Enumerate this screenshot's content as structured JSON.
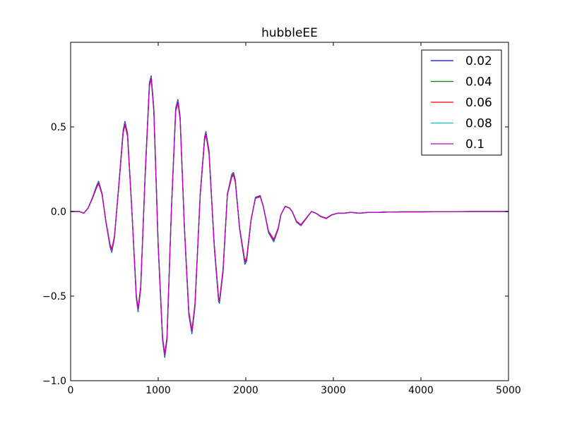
{
  "chart_data": {
    "type": "line",
    "title": "hubbleEE",
    "xlabel": "",
    "ylabel": "",
    "xlim": [
      0,
      5000
    ],
    "ylim": [
      -1.0,
      1.0
    ],
    "x_ticks": [
      0,
      1000,
      2000,
      3000,
      4000,
      5000
    ],
    "x_tick_labels": [
      "0",
      "1000",
      "2000",
      "3000",
      "4000",
      "5000"
    ],
    "y_ticks": [
      -1.0,
      -0.5,
      0.0,
      0.5
    ],
    "y_tick_labels": [
      "−1.0",
      "−0.5",
      "0.0",
      "0.5"
    ],
    "grid": false,
    "legend_position": "top-right",
    "waveform": {
      "x": [
        0,
        100,
        150,
        200,
        250,
        300,
        320,
        360,
        400,
        450,
        470,
        500,
        550,
        600,
        620,
        650,
        700,
        750,
        770,
        800,
        850,
        900,
        920,
        950,
        1000,
        1050,
        1075,
        1100,
        1150,
        1200,
        1225,
        1250,
        1300,
        1350,
        1385,
        1420,
        1480,
        1530,
        1545,
        1580,
        1640,
        1690,
        1700,
        1740,
        1790,
        1840,
        1860,
        1880,
        1930,
        1990,
        2010,
        2060,
        2110,
        2165,
        2200,
        2260,
        2320,
        2370,
        2400,
        2450,
        2500,
        2530,
        2580,
        2630,
        2690,
        2750,
        2800,
        2860,
        2920,
        2980,
        3050,
        3120,
        3200,
        3300,
        3400,
        3500,
        3650,
        3800,
        4000,
        4300,
        4600,
        5000
      ],
      "y": [
        0.0,
        0.0,
        -0.01,
        0.02,
        0.08,
        0.15,
        0.17,
        0.1,
        -0.05,
        -0.2,
        -0.23,
        -0.15,
        0.15,
        0.47,
        0.52,
        0.45,
        0.0,
        -0.5,
        -0.58,
        -0.45,
        0.2,
        0.75,
        0.79,
        0.6,
        -0.2,
        -0.75,
        -0.85,
        -0.75,
        0.0,
        0.6,
        0.65,
        0.55,
        -0.1,
        -0.6,
        -0.71,
        -0.55,
        0.1,
        0.43,
        0.46,
        0.35,
        -0.2,
        -0.52,
        -0.53,
        -0.35,
        0.1,
        0.21,
        0.22,
        0.18,
        -0.1,
        -0.3,
        -0.28,
        -0.05,
        0.08,
        0.09,
        0.03,
        -0.12,
        -0.17,
        -0.1,
        -0.02,
        0.03,
        0.02,
        0.0,
        -0.06,
        -0.08,
        -0.04,
        0.0,
        -0.01,
        -0.03,
        -0.04,
        -0.02,
        -0.01,
        -0.01,
        -0.005,
        -0.01,
        -0.005,
        -0.005,
        -0.003,
        -0.002,
        -0.002,
        -0.001,
        0.0,
        0.0
      ]
    },
    "series": [
      {
        "name": "0.02",
        "color": "#0000ff",
        "offset": 0.012
      },
      {
        "name": "0.04",
        "color": "#008000",
        "offset": 0.008
      },
      {
        "name": "0.06",
        "color": "#ff0000",
        "offset": -0.008
      },
      {
        "name": "0.08",
        "color": "#00bfbf",
        "offset": 0.004
      },
      {
        "name": "0.1",
        "color": "#bf00bf",
        "offset": 0.0
      }
    ]
  }
}
